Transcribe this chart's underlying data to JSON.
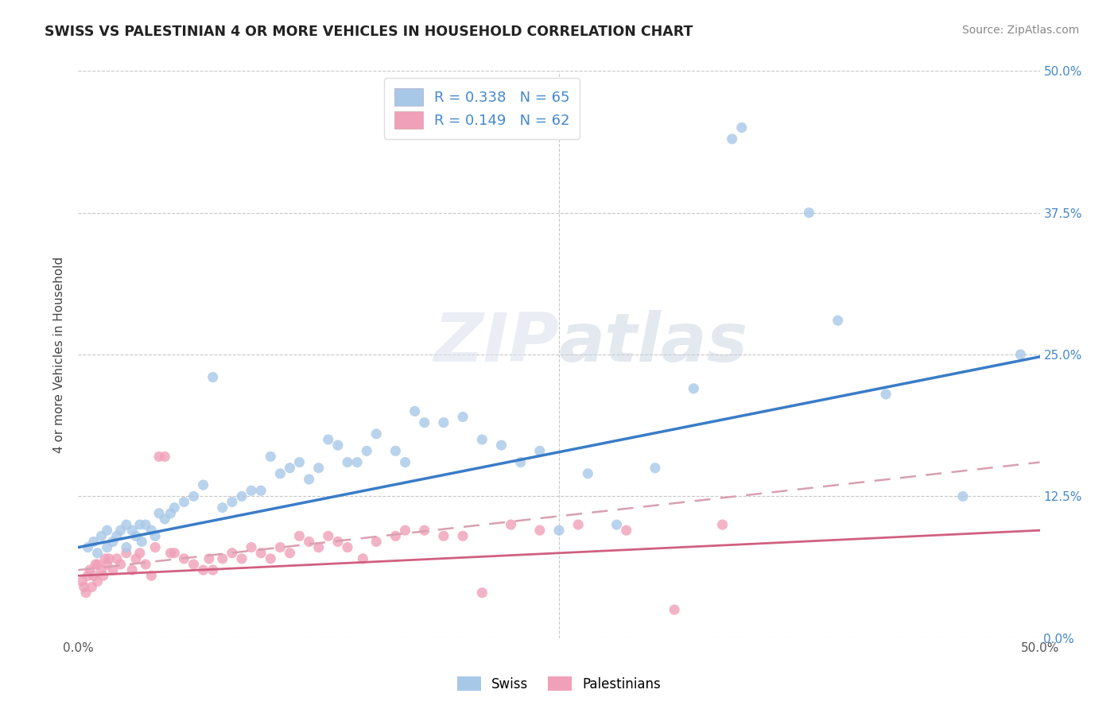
{
  "title": "SWISS VS PALESTINIAN 4 OR MORE VEHICLES IN HOUSEHOLD CORRELATION CHART",
  "source": "Source: ZipAtlas.com",
  "ylabel": "4 or more Vehicles in Household",
  "xlim": [
    0.0,
    0.5
  ],
  "ylim": [
    0.0,
    0.5
  ],
  "ytick_labels": [
    "0.0%",
    "12.5%",
    "25.0%",
    "37.5%",
    "50.0%"
  ],
  "ytick_vals": [
    0.0,
    0.125,
    0.25,
    0.375,
    0.5
  ],
  "grid_color": "#c8c8c8",
  "background_color": "#ffffff",
  "swiss_color": "#a8c8e8",
  "swiss_line_color": "#3a7cc7",
  "palestinian_color": "#f0a0b8",
  "palestinian_line_color": "#d06080",
  "palestinian_dash_color": "#d8a0b0",
  "swiss_R": 0.338,
  "swiss_N": 65,
  "palestinian_R": 0.149,
  "palestinian_N": 62,
  "legend_label_swiss": "Swiss",
  "legend_label_palestinian": "Palestinians",
  "swiss_x": [
    0.005,
    0.008,
    0.01,
    0.012,
    0.015,
    0.015,
    0.018,
    0.02,
    0.022,
    0.025,
    0.025,
    0.028,
    0.03,
    0.032,
    0.033,
    0.035,
    0.038,
    0.04,
    0.042,
    0.045,
    0.048,
    0.05,
    0.055,
    0.06,
    0.065,
    0.07,
    0.075,
    0.08,
    0.085,
    0.09,
    0.095,
    0.1,
    0.105,
    0.11,
    0.115,
    0.12,
    0.125,
    0.13,
    0.135,
    0.14,
    0.145,
    0.15,
    0.155,
    0.165,
    0.17,
    0.175,
    0.18,
    0.19,
    0.2,
    0.21,
    0.22,
    0.23,
    0.24,
    0.25,
    0.265,
    0.28,
    0.3,
    0.32,
    0.34,
    0.345,
    0.38,
    0.395,
    0.42,
    0.46,
    0.49
  ],
  "swiss_y": [
    0.08,
    0.085,
    0.075,
    0.09,
    0.08,
    0.095,
    0.085,
    0.09,
    0.095,
    0.08,
    0.1,
    0.095,
    0.09,
    0.1,
    0.085,
    0.1,
    0.095,
    0.09,
    0.11,
    0.105,
    0.11,
    0.115,
    0.12,
    0.125,
    0.135,
    0.23,
    0.115,
    0.12,
    0.125,
    0.13,
    0.13,
    0.16,
    0.145,
    0.15,
    0.155,
    0.14,
    0.15,
    0.175,
    0.17,
    0.155,
    0.155,
    0.165,
    0.18,
    0.165,
    0.155,
    0.2,
    0.19,
    0.19,
    0.195,
    0.175,
    0.17,
    0.155,
    0.165,
    0.095,
    0.145,
    0.1,
    0.15,
    0.22,
    0.44,
    0.45,
    0.375,
    0.28,
    0.215,
    0.125,
    0.25
  ],
  "pal_x": [
    0.002,
    0.003,
    0.004,
    0.005,
    0.006,
    0.007,
    0.008,
    0.009,
    0.01,
    0.01,
    0.012,
    0.013,
    0.014,
    0.015,
    0.016,
    0.018,
    0.02,
    0.022,
    0.025,
    0.028,
    0.03,
    0.032,
    0.035,
    0.038,
    0.04,
    0.042,
    0.045,
    0.048,
    0.05,
    0.055,
    0.06,
    0.065,
    0.068,
    0.07,
    0.075,
    0.08,
    0.085,
    0.09,
    0.095,
    0.1,
    0.105,
    0.11,
    0.115,
    0.12,
    0.125,
    0.13,
    0.135,
    0.14,
    0.148,
    0.155,
    0.165,
    0.17,
    0.18,
    0.19,
    0.2,
    0.21,
    0.225,
    0.24,
    0.26,
    0.285,
    0.31,
    0.335
  ],
  "pal_y": [
    0.05,
    0.045,
    0.04,
    0.055,
    0.06,
    0.045,
    0.055,
    0.065,
    0.05,
    0.065,
    0.06,
    0.055,
    0.07,
    0.065,
    0.07,
    0.06,
    0.07,
    0.065,
    0.075,
    0.06,
    0.07,
    0.075,
    0.065,
    0.055,
    0.08,
    0.16,
    0.16,
    0.075,
    0.075,
    0.07,
    0.065,
    0.06,
    0.07,
    0.06,
    0.07,
    0.075,
    0.07,
    0.08,
    0.075,
    0.07,
    0.08,
    0.075,
    0.09,
    0.085,
    0.08,
    0.09,
    0.085,
    0.08,
    0.07,
    0.085,
    0.09,
    0.095,
    0.095,
    0.09,
    0.09,
    0.04,
    0.1,
    0.095,
    0.1,
    0.095,
    0.025,
    0.1
  ],
  "swiss_line_x0": 0.0,
  "swiss_line_y0": 0.08,
  "swiss_line_x1": 0.5,
  "swiss_line_y1": 0.248,
  "pal_line_x0": 0.0,
  "pal_line_y0": 0.06,
  "pal_line_x1": 0.5,
  "pal_line_y1": 0.155
}
